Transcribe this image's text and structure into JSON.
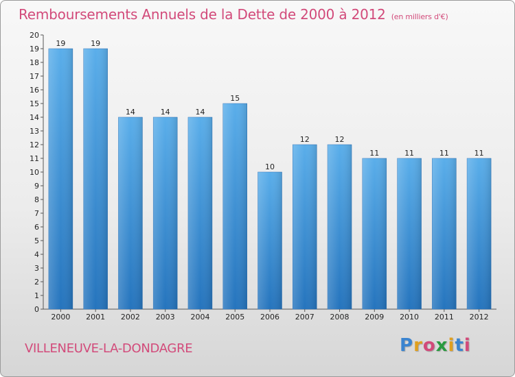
{
  "chart_data": {
    "type": "bar",
    "title": "Remboursements Annuels de la Dette de 2000 à 2012",
    "subtitle": "(en milliers d'€)",
    "categories": [
      "2000",
      "2001",
      "2002",
      "2003",
      "2004",
      "2005",
      "2006",
      "2007",
      "2008",
      "2009",
      "2010",
      "2011",
      "2012"
    ],
    "values": [
      19,
      19,
      14,
      14,
      14,
      15,
      10,
      12,
      12,
      11,
      11,
      11,
      11
    ],
    "value_labels": [
      "19",
      "19",
      "14",
      "14",
      "14",
      "15",
      "10",
      "12",
      "12",
      "11",
      "11",
      "11",
      "11"
    ],
    "y_ticks": [
      "0",
      "1",
      "2",
      "3",
      "4",
      "5",
      "6",
      "7",
      "8",
      "9",
      "10",
      "11",
      "12",
      "13",
      "14",
      "15",
      "16",
      "17",
      "18",
      "19",
      "20"
    ],
    "xlabel": "",
    "ylabel": "",
    "ylim": [
      0,
      20
    ],
    "grid": false,
    "legend": "none",
    "bar_color": "#3f8fd8"
  },
  "commune": "VILLENEUVE-LA-DONDAGRE",
  "logo": {
    "letters": [
      "P",
      "r",
      "o",
      "x",
      "i",
      "t",
      "i"
    ],
    "colors": [
      "#3a84d0",
      "#e0a020",
      "#d24a7a",
      "#2a9a40",
      "#e0a020",
      "#3a84d0",
      "#d24a7a"
    ]
  },
  "colors": {
    "title": "#d24a7a",
    "axis": "#555555"
  }
}
